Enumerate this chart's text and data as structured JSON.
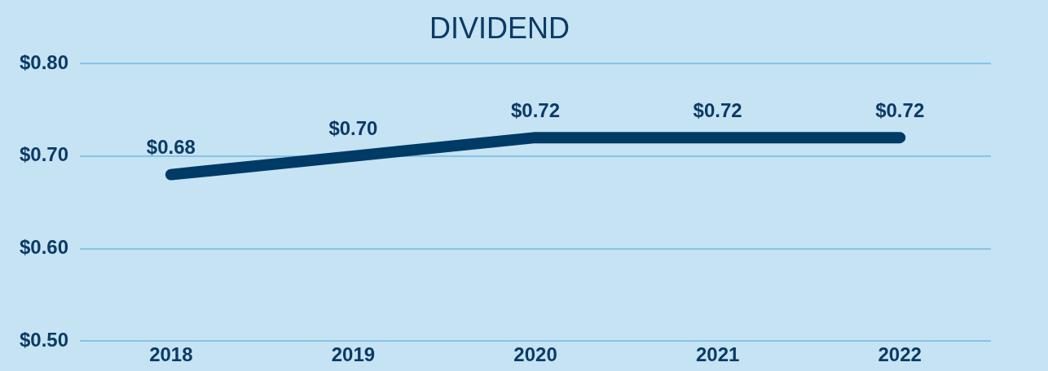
{
  "chart_data": {
    "type": "line",
    "title": "DIVIDEND",
    "categories": [
      "2018",
      "2019",
      "2020",
      "2021",
      "2022"
    ],
    "series": [
      {
        "color": "#003a66",
        "values": [
          0.68,
          0.7,
          0.72,
          0.72,
          0.72
        ],
        "value_labels": [
          "$0.68",
          "$0.70",
          "$0.72",
          "$0.72",
          "$0.72"
        ]
      }
    ],
    "ylim": [
      0.5,
      0.8
    ],
    "yticks": [
      {
        "value": 0.5,
        "label": "$0.50"
      },
      {
        "value": 0.6,
        "label": "$0.60"
      },
      {
        "value": 0.7,
        "label": "$0.70"
      },
      {
        "value": 0.8,
        "label": "$0.80"
      }
    ],
    "grid": "y",
    "legend": false,
    "marker": "none",
    "line_style": "solid"
  }
}
